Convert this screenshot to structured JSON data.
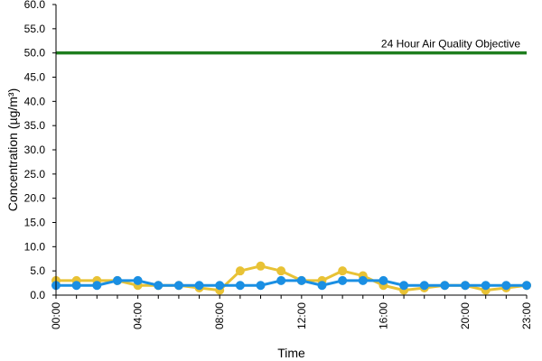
{
  "chart_data": {
    "type": "line",
    "xlabel": "Time",
    "ylabel": "Concentration (µg/m³)",
    "x": [
      0,
      1,
      2,
      3,
      4,
      5,
      6,
      7,
      8,
      9,
      10,
      11,
      12,
      13,
      14,
      15,
      16,
      17,
      18,
      19,
      20,
      21,
      22,
      23
    ],
    "x_tick_labels": [
      {
        "x": 0,
        "label": "00:00"
      },
      {
        "x": 4,
        "label": "04:00"
      },
      {
        "x": 8,
        "label": "08:00"
      },
      {
        "x": 12,
        "label": "12:00"
      },
      {
        "x": 16,
        "label": "16:00"
      },
      {
        "x": 20,
        "label": "20:00"
      },
      {
        "x": 23,
        "label": "23:00"
      }
    ],
    "y_ticks": [
      "0.0",
      "5.0",
      "10.0",
      "15.0",
      "20.0",
      "25.0",
      "30.0",
      "35.0",
      "40.0",
      "45.0",
      "50.0",
      "55.0",
      "60.0"
    ],
    "xlim": [
      0,
      23
    ],
    "ylim": [
      0,
      60
    ],
    "grid": false,
    "series": [
      {
        "color": "#e8c235",
        "values": [
          3,
          3,
          3,
          3,
          2,
          2,
          2,
          1.5,
          1,
          5,
          6,
          5,
          3,
          3,
          5,
          4,
          2,
          1,
          1.5,
          2,
          2,
          1,
          1.5,
          2
        ]
      },
      {
        "color": "#1a8fe3",
        "values": [
          2,
          2,
          2,
          3,
          3,
          2,
          2,
          2,
          2,
          2,
          2,
          3,
          3,
          2,
          3,
          3,
          3,
          2,
          2,
          2,
          2,
          2,
          2,
          2
        ]
      }
    ],
    "reference_line": {
      "y": 50,
      "color": "#1e7e1e",
      "label": "24 Hour Air Quality Objective"
    }
  }
}
